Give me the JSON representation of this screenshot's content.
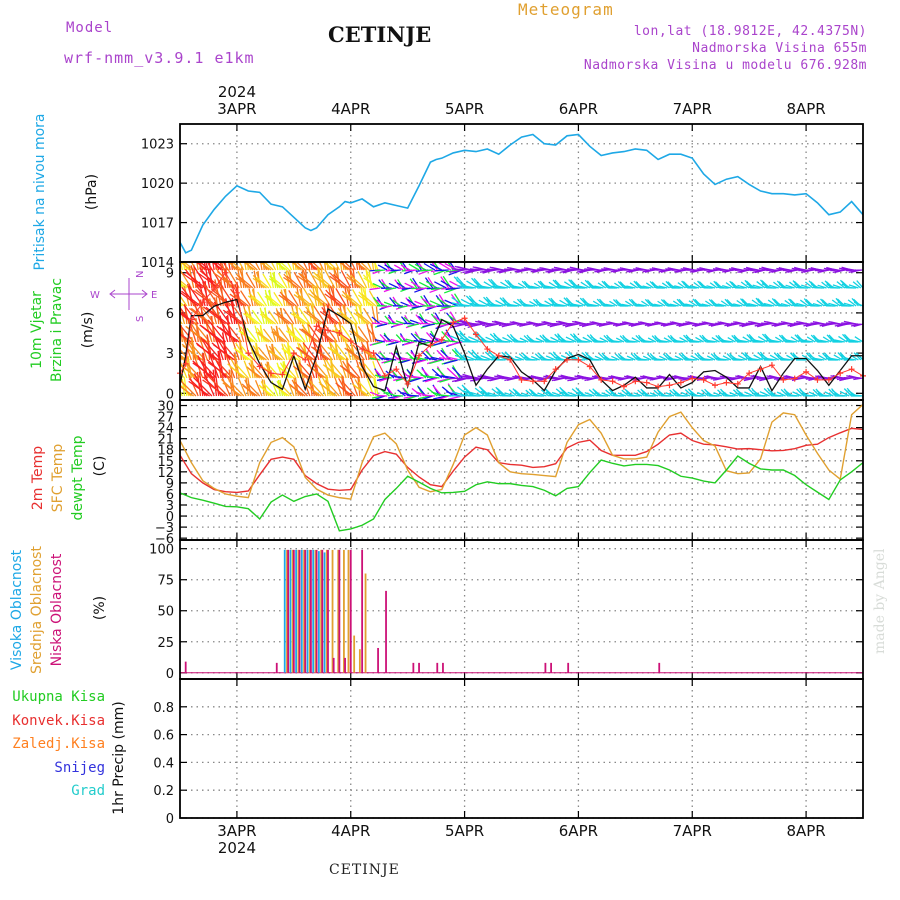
{
  "header": {
    "model_label": "Model",
    "model_name": "wrf-nmm_v3.9.1 e1km",
    "title": "CETINJE",
    "product": "Meteogram",
    "lonlat": "lon,lat (18.9812E, 42.4375N)",
    "altitude": "Nadmorska Visina 655m",
    "model_altitude": "Nadmorska Visina u modelu 676.928m",
    "footer": "CETINJE",
    "watermark": "made by Angel"
  },
  "colors": {
    "pressure": "#1ea8e6",
    "wind_speed": "#111111",
    "gust": "#ff3b2f",
    "temp2m": "#e83030",
    "sfc_temp": "#e0a030",
    "dewpt": "#22cc22",
    "cloud_high": "#1ea8e6",
    "cloud_mid": "#e0a030",
    "cloud_low": "#cc1177",
    "precip_total": "#22cc22",
    "precip_conv": "#e83030",
    "precip_frozen": "#ff8020",
    "precip_snow": "#3333dd",
    "precip_graupel": "#22cccc",
    "grid": "#888888"
  },
  "axis": {
    "year": "2024",
    "day_labels": [
      "3APR",
      "4APR",
      "5APR",
      "6APR",
      "7APR",
      "8APR"
    ],
    "day_positions": [
      0.5,
      1.5,
      2.5,
      3.5,
      4.5,
      5.5
    ],
    "x_range": [
      0,
      6.0
    ]
  },
  "chart_data": [
    {
      "type": "line",
      "panel": "pressure",
      "ylabel_lines": [
        "Pritisak na nivou mora"
      ],
      "unit": "(hPa)",
      "ylim": [
        1014,
        1024.5
      ],
      "yticks": [
        1014,
        1017,
        1020,
        1023
      ],
      "x": [
        0,
        0.05,
        0.1,
        0.2,
        0.3,
        0.4,
        0.5,
        0.55,
        0.6,
        0.7,
        0.8,
        0.9,
        1.0,
        1.1,
        1.15,
        1.2,
        1.3,
        1.4,
        1.45,
        1.5,
        1.6,
        1.7,
        1.8,
        1.9,
        2.0,
        2.1,
        2.2,
        2.25,
        2.3,
        2.4,
        2.5,
        2.6,
        2.7,
        2.8,
        2.9,
        3.0,
        3.1,
        3.2,
        3.3,
        3.4,
        3.5,
        3.6,
        3.7,
        3.8,
        3.9,
        4.0,
        4.1,
        4.2,
        4.3,
        4.4,
        4.5,
        4.6,
        4.7,
        4.8,
        4.9,
        5.0,
        5.1,
        5.2,
        5.3,
        5.4,
        5.5,
        5.6,
        5.7,
        5.8,
        5.9,
        6.0
      ],
      "series": [
        {
          "values": [
            1015.5,
            1014.7,
            1014.9,
            1016.8,
            1018.0,
            1019.0,
            1019.8,
            1019.6,
            1019.4,
            1019.3,
            1018.4,
            1018.2,
            1017.4,
            1016.6,
            1016.4,
            1016.6,
            1017.6,
            1018.2,
            1018.6,
            1018.5,
            1018.8,
            1018.2,
            1018.5,
            1018.3,
            1018.1,
            1019.8,
            1021.6,
            1021.8,
            1021.9,
            1022.3,
            1022.5,
            1022.4,
            1022.6,
            1022.2,
            1022.9,
            1023.5,
            1023.7,
            1023.0,
            1022.9,
            1023.6,
            1023.7,
            1022.8,
            1022.1,
            1022.3,
            1022.4,
            1022.6,
            1022.5,
            1021.8,
            1022.2,
            1022.2,
            1021.9,
            1020.7,
            1019.9,
            1020.3,
            1020.5,
            1019.9,
            1019.4,
            1019.2,
            1019.2,
            1019.1,
            1019.2,
            1018.5,
            1017.6,
            1017.8,
            1018.6,
            1017.6
          ]
        }
      ]
    },
    {
      "type": "line",
      "panel": "wind",
      "ylabel_lines": [
        "10m Vjetar",
        "Brzina i Pravac"
      ],
      "unit": "(m/s)",
      "ylim": [
        -0.5,
        9.8
      ],
      "yticks": [
        0,
        3,
        6,
        9
      ],
      "compass": {
        "n": "N",
        "s": "S",
        "w": "W",
        "e": "E"
      },
      "x": [
        0,
        0.05,
        0.1,
        0.2,
        0.3,
        0.4,
        0.5,
        0.6,
        0.7,
        0.8,
        0.9,
        1.0,
        1.1,
        1.2,
        1.3,
        1.4,
        1.5,
        1.6,
        1.7,
        1.8,
        1.9,
        2.0,
        2.1,
        2.2,
        2.3,
        2.4,
        2.5,
        2.6,
        2.7,
        2.8,
        2.9,
        3.0,
        3.1,
        3.2,
        3.3,
        3.4,
        3.5,
        3.6,
        3.7,
        3.8,
        3.9,
        4.0,
        4.1,
        4.2,
        4.3,
        4.4,
        4.5,
        4.6,
        4.7,
        4.8,
        4.9,
        5.0,
        5.1,
        5.2,
        5.3,
        5.4,
        5.5,
        5.6,
        5.7,
        5.8,
        5.9,
        6.0
      ],
      "series": [
        {
          "name": "speed",
          "values": [
            0.6,
            2.8,
            5.8,
            5.8,
            6.5,
            6.8,
            7.0,
            4.0,
            2.2,
            0.8,
            0.3,
            2.8,
            0.3,
            2.8,
            6.3,
            5.8,
            5.2,
            2.0,
            0.5,
            0.2,
            3.5,
            0.5,
            3.8,
            3.5,
            5.5,
            5.0,
            3.0,
            0.6,
            1.8,
            2.8,
            2.7,
            1.6,
            1.0,
            0.2,
            1.7,
            2.6,
            2.9,
            2.5,
            1.0,
            0.2,
            0.6,
            1.2,
            0.4,
            0.4,
            1.4,
            0.4,
            0.8,
            1.6,
            1.7,
            1.2,
            0.4,
            0.4,
            2.0,
            0.2,
            1.5,
            2.6,
            2.6,
            1.7,
            0.6,
            1.7,
            2.8,
            2.8
          ]
        },
        {
          "name": "gust",
          "values": [
            1.5,
            2.2,
            5.5,
            6.8,
            7.8,
            9.0,
            7.5,
            3.0,
            2.0,
            1.5,
            1.4,
            3.0,
            2.5,
            5.0,
            4.7,
            4.5,
            3.9,
            3.3,
            3.0,
            1.3,
            1.8,
            0.7,
            2.8,
            3.6,
            4.0,
            5.3,
            5.6,
            4.4,
            3.3,
            2.8,
            2.5,
            1.0,
            0.9,
            0.9,
            1.8,
            2.5,
            2.5,
            2.0,
            1.0,
            0.9,
            0.5,
            0.9,
            0.8,
            0.5,
            0.6,
            0.8,
            1.1,
            1.0,
            0.6,
            0.8,
            0.7,
            1.5,
            1.8,
            2.1,
            1.0,
            1.1,
            1.6,
            1.0,
            1.0,
            1.5,
            1.8,
            1.3
          ]
        }
      ]
    },
    {
      "type": "line",
      "panel": "temperature",
      "ylabel_lines": [
        "2m Temp",
        "SFC Temp",
        "dewpt Temp"
      ],
      "unit": "(C)",
      "ylim": [
        -6.5,
        31.5
      ],
      "yticks": [
        -6,
        -3,
        0,
        3,
        6,
        9,
        12,
        15,
        18,
        21,
        24,
        27,
        30
      ],
      "x": [
        0,
        0.1,
        0.2,
        0.3,
        0.4,
        0.5,
        0.6,
        0.7,
        0.8,
        0.9,
        1.0,
        1.1,
        1.2,
        1.3,
        1.4,
        1.5,
        1.6,
        1.7,
        1.8,
        1.9,
        2.0,
        2.1,
        2.2,
        2.3,
        2.4,
        2.5,
        2.6,
        2.7,
        2.8,
        2.9,
        3.0,
        3.1,
        3.2,
        3.3,
        3.4,
        3.5,
        3.6,
        3.7,
        3.8,
        3.9,
        4.0,
        4.1,
        4.2,
        4.3,
        4.4,
        4.5,
        4.6,
        4.7,
        4.8,
        4.9,
        5.0,
        5.1,
        5.2,
        5.3,
        5.4,
        5.5,
        5.6,
        5.7,
        5.8,
        5.9,
        6.0
      ],
      "series": [
        {
          "name": "2m Temp",
          "values": [
            16.5,
            11.5,
            9.0,
            7.2,
            6.6,
            6.4,
            6.8,
            11.2,
            15.4,
            16.0,
            15.4,
            11.0,
            8.8,
            7.3,
            7.0,
            7.2,
            12.5,
            16.4,
            17.5,
            16.8,
            13.2,
            10.6,
            8.5,
            8.0,
            12.2,
            16.0,
            18.7,
            18.0,
            14.5,
            14.0,
            13.8,
            13.2,
            13.4,
            14.2,
            18.5,
            20.0,
            20.6,
            17.8,
            16.5,
            16.5,
            16.5,
            17.5,
            19.5,
            22.0,
            22.5,
            20.5,
            19.5,
            19.3,
            18.8,
            18.2,
            18.3,
            18.0,
            17.7,
            17.8,
            18.3,
            19.2,
            19.5,
            21.3,
            22.6,
            23.8,
            23.5
          ]
        },
        {
          "name": "SFC Temp",
          "values": [
            20.5,
            14.5,
            9.6,
            7.5,
            6.0,
            5.4,
            5.0,
            14.5,
            20.0,
            21.3,
            18.8,
            10.5,
            7.3,
            5.7,
            5.0,
            4.6,
            14.5,
            21.5,
            22.5,
            19.6,
            12.5,
            7.8,
            6.6,
            7.2,
            14.0,
            22.0,
            24.0,
            22.0,
            14.5,
            12.0,
            11.5,
            11.3,
            11.0,
            10.7,
            20.0,
            24.8,
            26.2,
            22.5,
            16.5,
            15.5,
            15.5,
            16.0,
            22.8,
            27.0,
            28.2,
            24.0,
            20.5,
            19.0,
            12.3,
            11.5,
            11.7,
            15.5,
            25.5,
            28.0,
            27.5,
            22.0,
            17.0,
            12.5,
            10.0,
            27.5,
            30.3
          ]
        },
        {
          "name": "dewpt Temp",
          "values": [
            6.3,
            5.0,
            4.3,
            3.5,
            2.6,
            2.5,
            2.0,
            -0.8,
            3.8,
            5.7,
            4.0,
            5.3,
            6.0,
            4.0,
            -4.0,
            -3.5,
            -2.5,
            -0.8,
            4.5,
            7.5,
            10.8,
            9.2,
            7.5,
            6.3,
            6.4,
            6.7,
            8.5,
            9.3,
            8.8,
            8.8,
            8.3,
            8.0,
            7.0,
            5.5,
            7.5,
            8.0,
            11.8,
            15.2,
            14.3,
            13.6,
            14.0,
            14.0,
            13.7,
            12.5,
            10.8,
            10.3,
            9.5,
            9.0,
            12.5,
            16.3,
            14.3,
            12.8,
            12.5,
            12.5,
            11.0,
            8.5,
            6.5,
            4.5,
            9.8,
            12.0,
            14.5
          ]
        }
      ]
    },
    {
      "type": "bar",
      "panel": "clouds",
      "ylabel_lines": [
        "Visoka Oblacnost",
        "Srednja Oblacnost",
        "Niska Oblacnost"
      ],
      "unit": "(%)",
      "ylim": [
        -5,
        107
      ],
      "yticks": [
        0,
        25,
        50,
        75,
        100
      ],
      "series": [
        {
          "name": "Visoka Oblacnost",
          "x": [
            0.92,
            0.97,
            1.02,
            1.07,
            1.12,
            1.17,
            1.22,
            1.27
          ],
          "values": [
            99,
            99,
            99,
            99,
            99,
            99,
            98,
            97
          ]
        },
        {
          "name": "Srednja Oblacnost",
          "x": [
            0.94,
            0.99,
            1.04,
            1.09,
            1.14,
            1.19,
            1.24,
            1.29,
            1.34,
            1.39,
            1.44,
            1.48,
            1.53,
            1.58,
            1.63
          ],
          "values": [
            99,
            99,
            99,
            99,
            99,
            99,
            99,
            99,
            99,
            99,
            99,
            99,
            30,
            19,
            80
          ]
        },
        {
          "name": "Niska Oblacnost",
          "x": [
            0.05,
            0.85,
            0.95,
            1.0,
            1.05,
            1.1,
            1.15,
            1.2,
            1.25,
            1.3,
            1.35,
            1.4,
            1.45,
            1.5,
            1.6,
            1.74,
            1.81,
            2.05,
            2.1,
            2.26,
            2.31,
            3.21,
            3.26,
            3.41,
            4.21
          ],
          "values": [
            9,
            8,
            99,
            99,
            99,
            99,
            99,
            99,
            99,
            99,
            12,
            99,
            12,
            99,
            99,
            20,
            66,
            8,
            8,
            8,
            8,
            8,
            8,
            8,
            8
          ]
        }
      ]
    },
    {
      "type": "line",
      "panel": "precipitation",
      "ylabel_lines": [
        "1hr Precip (mm)"
      ],
      "ylim": [
        0,
        1.0
      ],
      "yticks": [
        0,
        0.2,
        0.4,
        0.6,
        0.8
      ],
      "legend": [
        "Ukupna Kisa",
        "Konvek.Kisa",
        "Zaledj.Kisa",
        "Snijeg",
        "Grad"
      ],
      "x": [
        0,
        6.0
      ],
      "series": [
        {
          "name": "Ukupna Kisa",
          "values": [
            0,
            0
          ]
        }
      ]
    }
  ]
}
